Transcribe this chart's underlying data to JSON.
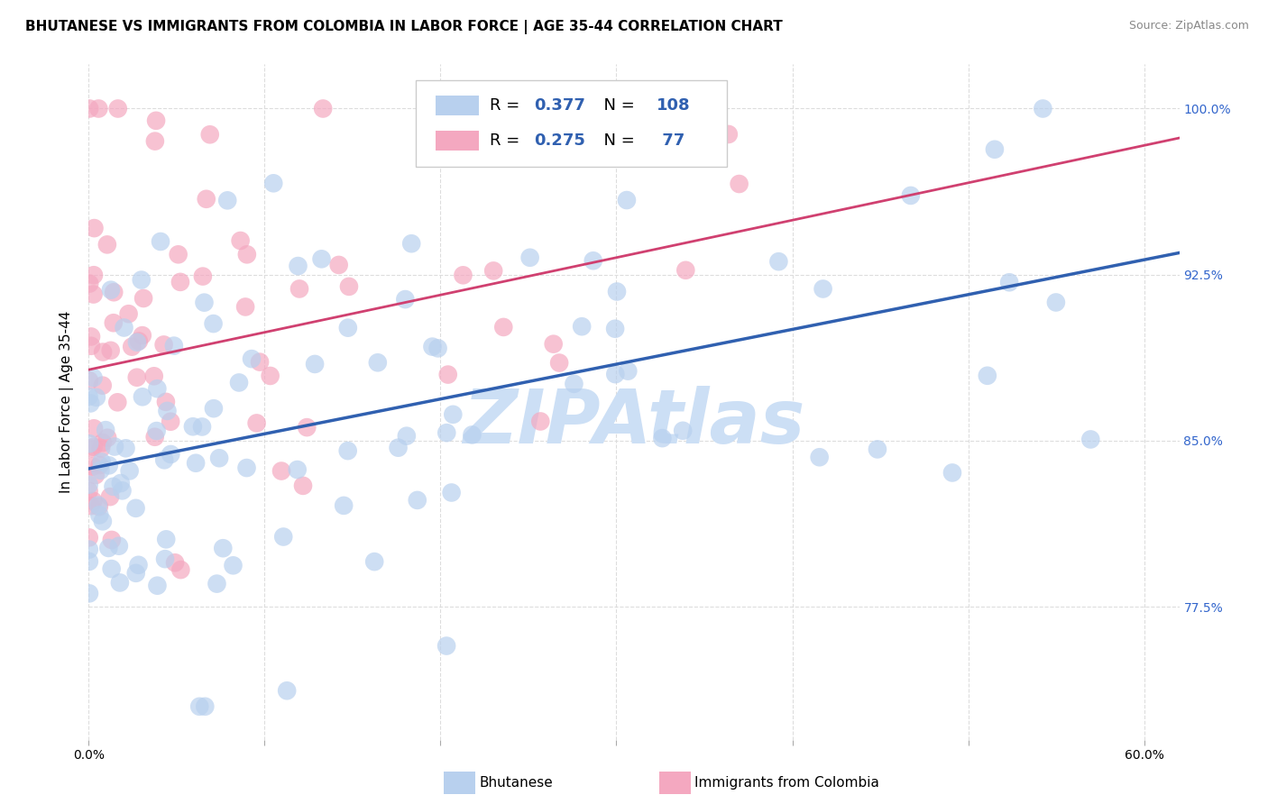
{
  "title": "BHUTANESE VS IMMIGRANTS FROM COLOMBIA IN LABOR FORCE | AGE 35-44 CORRELATION CHART",
  "source": "Source: ZipAtlas.com",
  "ylabel": "In Labor Force | Age 35-44",
  "xlim": [
    0.0,
    0.62
  ],
  "ylim": [
    0.715,
    1.02
  ],
  "yticks": [
    0.775,
    0.85,
    0.925,
    1.0
  ],
  "ytick_labels": [
    "77.5%",
    "85.0%",
    "92.5%",
    "100.0%"
  ],
  "xticks": [
    0.0,
    0.1,
    0.2,
    0.3,
    0.4,
    0.5,
    0.6
  ],
  "series1_name": "Bhutanese",
  "series1_R": "0.377",
  "series1_N": "108",
  "series1_dot_color": "#b8d0ee",
  "series1_line_color": "#3060b0",
  "series2_name": "Immigrants from Colombia",
  "series2_R": "0.275",
  "series2_N": " 77",
  "series2_dot_color": "#f4a8c0",
  "series2_line_color": "#d04070",
  "legend_R_color": "#3060b0",
  "legend_N_color": "#3060b0",
  "watermark": "ZIPAtlas",
  "watermark_color": "#ccdff5",
  "bg_color": "#ffffff",
  "grid_color": "#dddddd",
  "right_tick_color": "#3366cc",
  "title_fontsize": 11,
  "ylabel_fontsize": 11,
  "tick_fontsize": 10,
  "legend_fontsize": 13
}
